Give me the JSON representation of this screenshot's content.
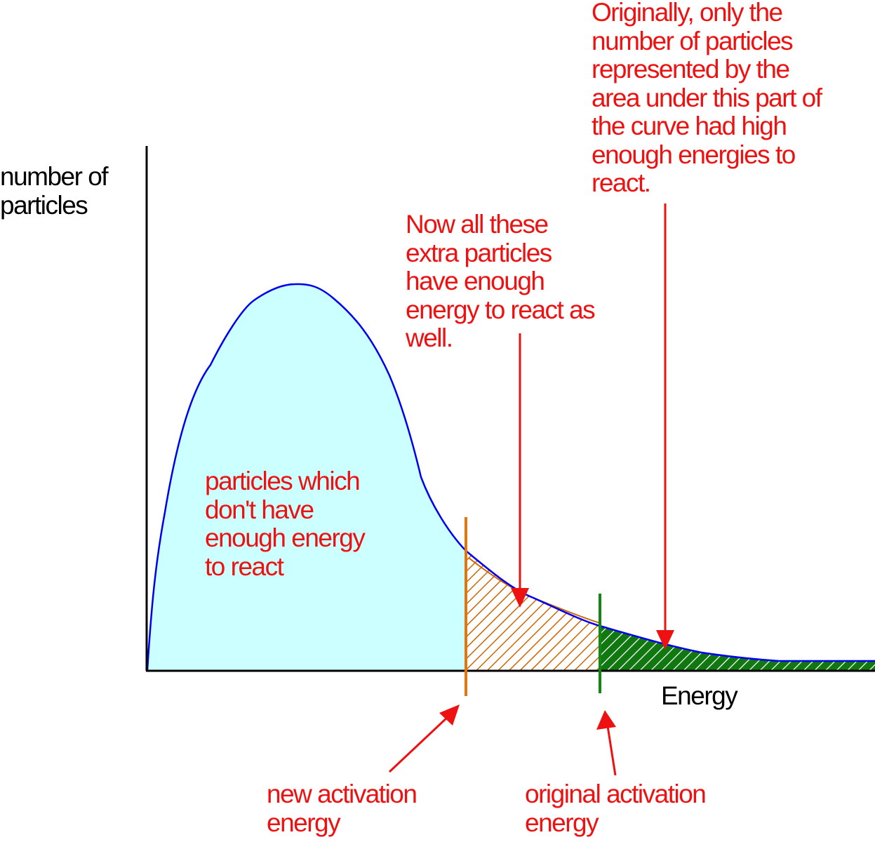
{
  "diagram": {
    "y_axis_label": [
      "number of",
      "particles"
    ],
    "x_axis_label": "Energy",
    "annotations": {
      "no_energy_region": [
        "particles which",
        "don't have",
        "enough energy",
        "to react"
      ],
      "extra_particles": [
        "Now all these",
        "extra particles",
        "have enough",
        "energy to react as",
        "well."
      ],
      "original_particles": [
        "Originally, only the",
        "number of particles",
        "represented by the",
        "area under this part of",
        "the curve had high",
        "enough energies to",
        "react."
      ],
      "new_activation_energy": [
        "new activation",
        "energy"
      ],
      "original_activation_energy": [
        "original activation",
        "energy"
      ]
    },
    "colors": {
      "curve": "#0000ee",
      "curve_fill": "#ccffff",
      "axes": "#000000",
      "new_activation_line": "#dd7711",
      "new_region_hatch": "#cc6600",
      "original_activation_line": "#118811",
      "original_region": "#117711",
      "annotation_text": "#ee1111",
      "arrows": "#ee1111"
    }
  }
}
